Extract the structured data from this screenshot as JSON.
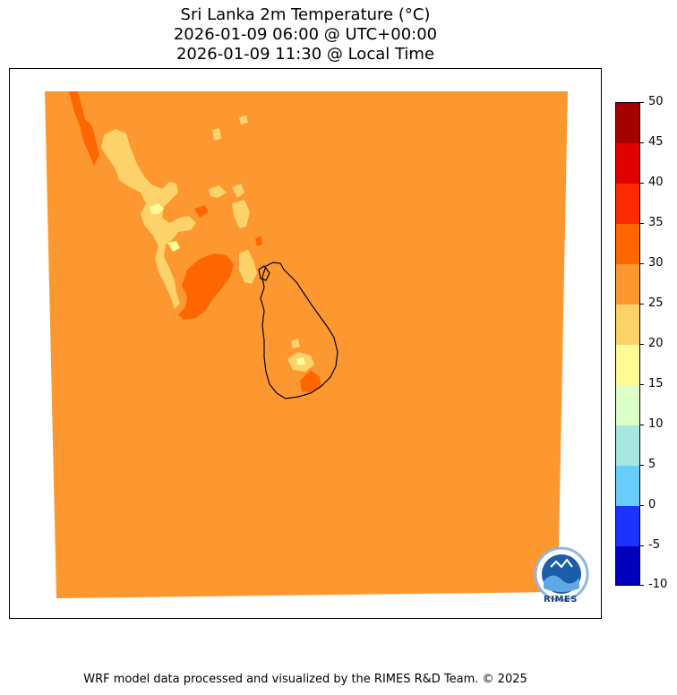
{
  "title": {
    "line1": "Sri Lanka 2m Temperature (°C)",
    "line2": "2026-01-09 06:00 @ UTC+00:00",
    "line3": "2026-01-09 11:30 @ Local Time"
  },
  "colorbar": {
    "tick_labels": [
      "50",
      "45",
      "40",
      "35",
      "30",
      "25",
      "20",
      "15",
      "10",
      "5",
      "0",
      "-5",
      "-10"
    ],
    "bin_colors_top_to_bottom": [
      "#a50000",
      "#e00000",
      "#ff2a00",
      "#ff6600",
      "#fd9831",
      "#fcd26a",
      "#fffb96",
      "#dcffc8",
      "#a6e8e0",
      "#69cdfa",
      "#1e32ff",
      "#0000bd"
    ]
  },
  "map": {
    "background_color": "#fd9831",
    "logo_text": "RIMES",
    "island_outline": "Sri Lanka coastline",
    "field_min_class": "20-25",
    "field_max_class": "30-35"
  },
  "footer": "WRF model data processed and visualized by the RIMES R&D Team. © 2025",
  "icons": {
    "logo": "rimes-logo-icon"
  }
}
